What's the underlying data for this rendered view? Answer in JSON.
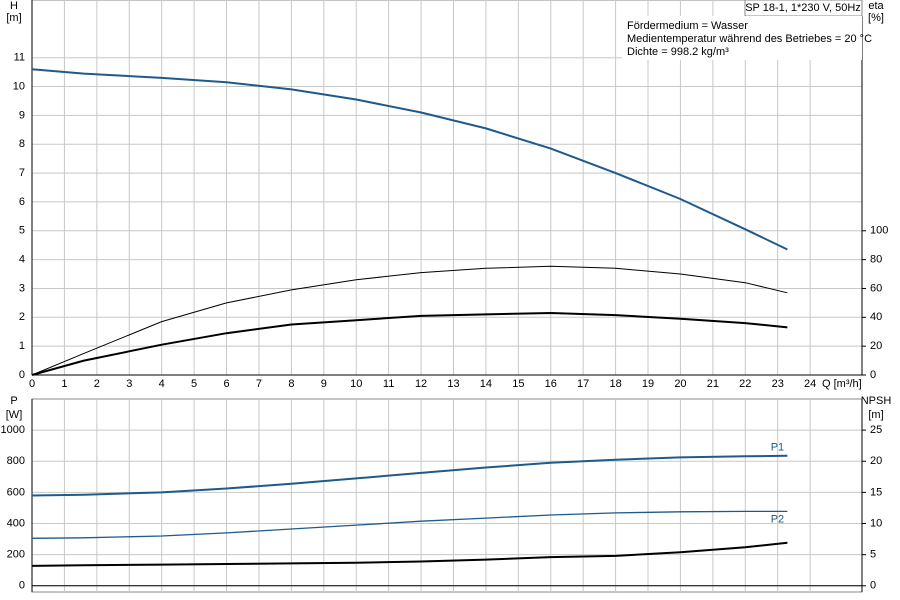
{
  "chart_data": [
    {
      "type": "line",
      "ylabel": "H",
      "yunit": "[m]",
      "y2label": "eta",
      "y2unit": "[%]",
      "xlabel": "Q [m³/h]",
      "annotations": [
        "SP 18-1, 1*230 V, 50Hz",
        "Fördermedium = Wasser",
        "Medientemperatur während des Betriebes = 20 °C",
        "Dichte = 998.2 kg/m³"
      ],
      "xlim": [
        0,
        25.6
      ],
      "xticks": [
        0,
        1,
        2,
        3,
        4,
        5,
        6,
        7,
        8,
        9,
        10,
        11,
        12,
        13,
        14,
        15,
        16,
        17,
        18,
        19,
        20,
        21,
        22,
        23,
        24
      ],
      "ylim": [
        0,
        13
      ],
      "yticks": [
        0,
        1,
        2,
        3,
        4,
        5,
        6,
        7,
        8,
        9,
        10,
        11
      ],
      "y2lim": [
        0,
        260
      ],
      "y2ticks": [
        0,
        20,
        40,
        60,
        80,
        100
      ],
      "grid": true,
      "x": [
        0,
        1.6,
        4,
        6,
        8,
        10,
        12,
        14,
        16,
        18,
        20,
        22,
        23.3
      ],
      "series": [
        {
          "color": "#1f5a8c",
          "width": 2,
          "values": [
            10.6,
            10.45,
            10.3,
            10.15,
            9.9,
            9.55,
            9.1,
            8.55,
            7.85,
            7.0,
            6.1,
            5.05,
            4.35
          ]
        },
        {
          "color": "#000000",
          "width": 1,
          "axis": "y2",
          "values": [
            0,
            15,
            37,
            50,
            59,
            66,
            71,
            74,
            75.4,
            74,
            70,
            64,
            57
          ]
        },
        {
          "color": "#000000",
          "width": 2,
          "axis": "y2",
          "values": [
            0,
            10,
            21,
            29,
            35,
            38,
            41,
            42,
            43,
            41.5,
            39,
            36,
            33
          ]
        }
      ]
    },
    {
      "type": "line",
      "ylabel": "P",
      "yunit": "[W]",
      "y2label": "NPSH",
      "y2unit": "[m]",
      "xlim": [
        0,
        25.6
      ],
      "xticks": [
        0,
        1,
        2,
        3,
        4,
        5,
        6,
        7,
        8,
        9,
        10,
        11,
        12,
        13,
        14,
        15,
        16,
        17,
        18,
        19,
        20,
        21,
        22,
        23,
        24
      ],
      "ylim": [
        -40,
        1200
      ],
      "yticks": [
        0,
        200,
        400,
        600,
        800,
        1000
      ],
      "y2lim": [
        -1,
        30
      ],
      "y2ticks": [
        0,
        5,
        10,
        15,
        20,
        25
      ],
      "grid": true,
      "x": [
        0,
        1.6,
        4,
        6,
        8,
        10,
        12,
        14,
        16,
        18,
        20,
        22,
        23.3
      ],
      "series": [
        {
          "label": "P1",
          "color": "#1f5a8c",
          "width": 2,
          "values": [
            580,
            585,
            600,
            625,
            655,
            690,
            725,
            760,
            790,
            810,
            825,
            832,
            835
          ]
        },
        {
          "label": "P2",
          "color": "#1f5a8c",
          "width": 1.3,
          "values": [
            305,
            308,
            320,
            340,
            365,
            390,
            415,
            435,
            455,
            468,
            475,
            478,
            478
          ]
        },
        {
          "color": "#000000",
          "width": 2,
          "axis": "y2",
          "values": [
            3.2,
            3.3,
            3.4,
            3.5,
            3.6,
            3.7,
            3.9,
            4.2,
            4.6,
            4.8,
            5.4,
            6.2,
            6.9
          ]
        }
      ]
    }
  ]
}
